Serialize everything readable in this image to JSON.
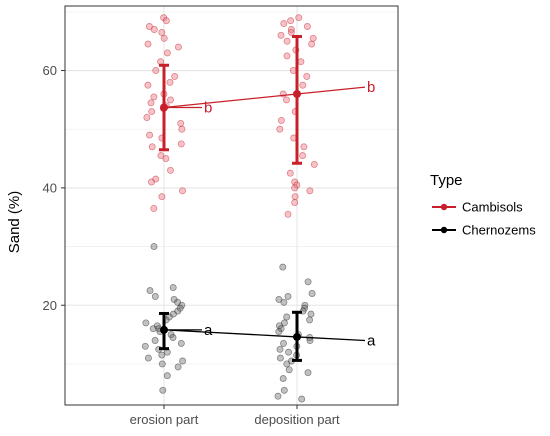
{
  "chart_data": {
    "type": "scatter",
    "title": "",
    "xlabel": "",
    "ylabel": "Sand (%)",
    "categories": [
      "erosion part",
      "deposition part"
    ],
    "y_ticks": [
      20,
      40,
      60
    ],
    "ylim": [
      3,
      71
    ],
    "grid": true,
    "legend": {
      "title": "Type",
      "placement": "right"
    },
    "series": [
      {
        "name": "Cambisols",
        "color": "#c8202b",
        "mean": [
          53.7,
          56.0
        ],
        "error_low": [
          46.5,
          44.2
        ],
        "error_high": [
          60.9,
          65.8
        ],
        "letters": [
          "b",
          "b"
        ],
        "points": [
          [
            69.0,
            68.5,
            67.5,
            67.0,
            66.5,
            65.5,
            64.5,
            64.0,
            63.0,
            61.5,
            60.0,
            59.0,
            58.0,
            57.5,
            56.0,
            55.5,
            55.0,
            54.5,
            54.0,
            53.5,
            53.0,
            52.0,
            51.0,
            50.0,
            49.0,
            48.5,
            47.5,
            47.0,
            45.5,
            45.0,
            43.0,
            41.5,
            41.0,
            39.5,
            38.5,
            36.5
          ],
          [
            69.0,
            68.5,
            68.0,
            67.5,
            67.0,
            66.5,
            66.0,
            65.5,
            65.0,
            64.5,
            63.5,
            62.5,
            61.5,
            60.0,
            59.0,
            57.5,
            56.0,
            55.0,
            53.0,
            51.5,
            50.0,
            48.5,
            47.0,
            45.5,
            44.0,
            42.5,
            41.0,
            40.5,
            40.0,
            39.5,
            38.5,
            37.5,
            35.5
          ]
        ]
      },
      {
        "name": "Chernozems",
        "color": "#000000",
        "mean": [
          15.8,
          14.6
        ],
        "error_low": [
          12.6,
          10.6
        ],
        "error_high": [
          18.6,
          18.8
        ],
        "letters": [
          "a",
          "a"
        ],
        "points": [
          [
            30.0,
            23.0,
            22.5,
            21.5,
            21.0,
            20.5,
            20.0,
            19.5,
            19.0,
            18.5,
            18.0,
            17.5,
            17.0,
            16.5,
            16.0,
            16.0,
            15.5,
            15.0,
            14.5,
            14.0,
            13.5,
            13.0,
            12.5,
            12.0,
            11.5,
            11.0,
            10.5,
            10.0,
            9.5,
            8.0,
            5.5
          ],
          [
            26.5,
            24.0,
            22.0,
            21.5,
            21.0,
            20.5,
            20.0,
            19.5,
            19.0,
            18.5,
            18.0,
            17.5,
            17.0,
            16.5,
            16.0,
            15.5,
            15.0,
            14.5,
            14.0,
            13.5,
            13.0,
            12.5,
            12.0,
            11.5,
            11.0,
            10.5,
            10.0,
            9.0,
            8.5,
            7.5,
            5.5,
            4.5,
            4.0
          ]
        ]
      }
    ]
  }
}
